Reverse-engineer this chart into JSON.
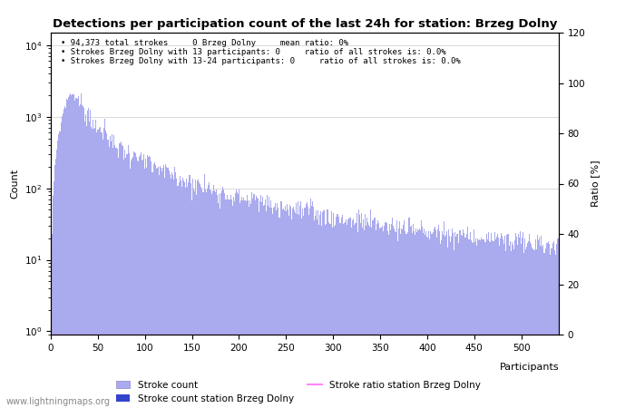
{
  "title": "Detections per participation count of the last 24h for station: Brzeg Dolny",
  "xlabel": "Participants",
  "ylabel_left": "Count",
  "ylabel_right": "Ratio [%]",
  "annotation_lines": [
    "94,373 total strokes     0 Brzeg Dolny     mean ratio: 0%",
    "Strokes Brzeg Dolny with 13 participants: 0     ratio of all strokes is: 0.0%",
    "Strokes Brzeg Dolny with 13-24 participants: 0     ratio of all strokes is: 0.0%"
  ],
  "bar_color_light": "#aaaaee",
  "bar_color_dark": "#3344cc",
  "ratio_line_color": "#ff88ff",
  "watermark": "www.lightningmaps.org",
  "xlim": [
    0,
    540
  ],
  "ylim_ratio": [
    0,
    120
  ],
  "num_bars": 540,
  "xticks": [
    0,
    50,
    100,
    150,
    200,
    250,
    300,
    350,
    400,
    450,
    500
  ],
  "right_yticks": [
    0,
    20,
    40,
    60,
    80,
    100,
    120
  ]
}
